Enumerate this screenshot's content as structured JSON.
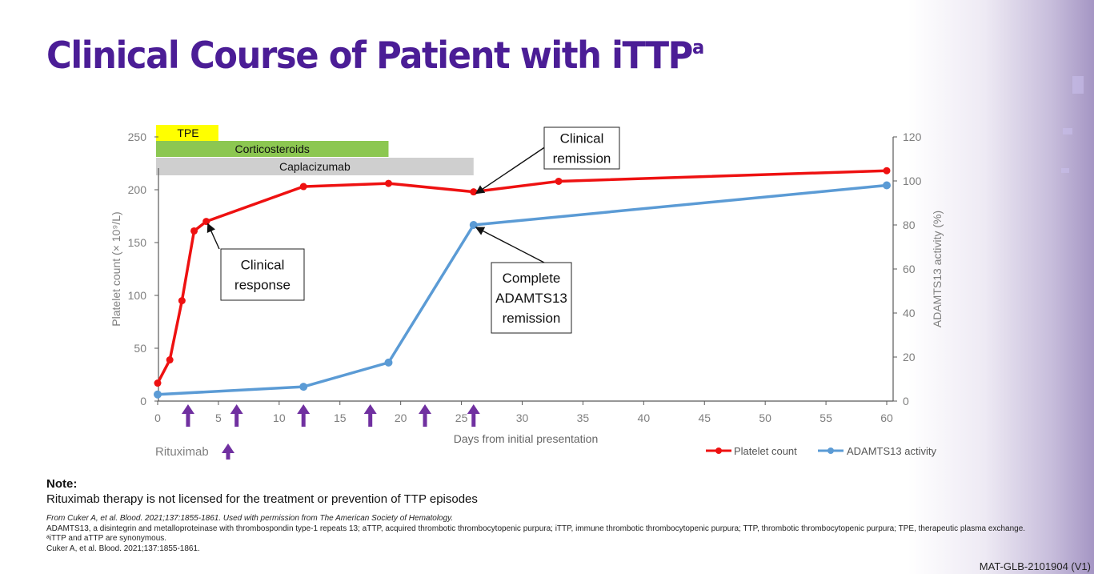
{
  "slide": {
    "title": "Clinical Course of Patient with iTTP",
    "title_superscript": "a",
    "note_heading": "Note:",
    "note_text": "Rituximab therapy is not licensed for the treatment or prevention of TTP episodes",
    "source_line": "From Cuker A, et al. Blood. 2021;137:1855-1861. Used with permission from The American Society of Hematology.",
    "abbreviations": "ADAMTS13, a disintegrin and metalloproteinase with thrombospondin type-1 repeats 13; aTTP, acquired thrombotic thrombocytopenic purpura; iTTP, immune thrombotic thrombocytopenic purpura; TTP, thrombotic thrombocytopenic purpura; TPE, therapeutic plasma exchange. ᵃiTTP and aTTP are synonymous.",
    "reference": "Cuker A, et al. Blood. 2021;137:1855-1861.",
    "document_code": "MAT-GLB-2101904 (V1)",
    "colors": {
      "title": "#4b1d96",
      "platelet": "#ee1111",
      "adamts13": "#5b9bd5",
      "rituximab_arrow": "#7030a0",
      "tpe_bar": "#ffff00",
      "corticosteroids_bar": "#8cc751",
      "caplacizumab_bar": "#cfcfcf"
    }
  },
  "chart_data": {
    "type": "line",
    "xlabel": "Days from initial presentation",
    "ylabel": "Platelet count (× 10⁹/L)",
    "y2label": "ADAMTS13 activity (%)",
    "xlim": [
      0,
      60
    ],
    "ylim": [
      0,
      250
    ],
    "y2lim": [
      0,
      120
    ],
    "xticks": [
      0,
      5,
      10,
      15,
      20,
      25,
      30,
      35,
      40,
      45,
      50,
      55,
      60
    ],
    "yticks": [
      0,
      50,
      100,
      150,
      200,
      250
    ],
    "y2ticks": [
      0,
      20,
      40,
      60,
      80,
      100,
      120
    ],
    "grid": false,
    "legend_position": "bottom-right",
    "series": [
      {
        "name": "Platelet count",
        "axis": "left",
        "x": [
          0,
          1,
          2,
          3,
          4,
          12,
          19,
          26,
          33,
          60
        ],
        "y": [
          17,
          39,
          95,
          161,
          170,
          203,
          206,
          198,
          208,
          218
        ]
      },
      {
        "name": "ADAMTS13 activity",
        "axis": "right",
        "x": [
          0,
          12,
          19,
          26,
          60
        ],
        "y": [
          3,
          6.5,
          17.5,
          80,
          98
        ]
      }
    ],
    "treatments": [
      {
        "label": "TPE",
        "start_day": 0,
        "end_day": 5
      },
      {
        "label": "Corticosteroids",
        "start_day": 0,
        "end_day": 19
      },
      {
        "label": "Caplacizumab",
        "start_day": 0,
        "end_day": 26
      }
    ],
    "rituximab": {
      "label": "Rituximab",
      "days": [
        2.5,
        6.5,
        12,
        17.5,
        22,
        26
      ]
    },
    "annotations": [
      {
        "lines": [
          "Clinical",
          "response"
        ],
        "series": "Platelet count",
        "point_day": 4
      },
      {
        "lines": [
          "Clinical",
          "remission"
        ],
        "series": "Platelet count",
        "point_day": 26
      },
      {
        "lines": [
          "Complete",
          "ADAMTS13",
          "remission"
        ],
        "series": "ADAMTS13 activity",
        "point_day": 26
      }
    ]
  }
}
